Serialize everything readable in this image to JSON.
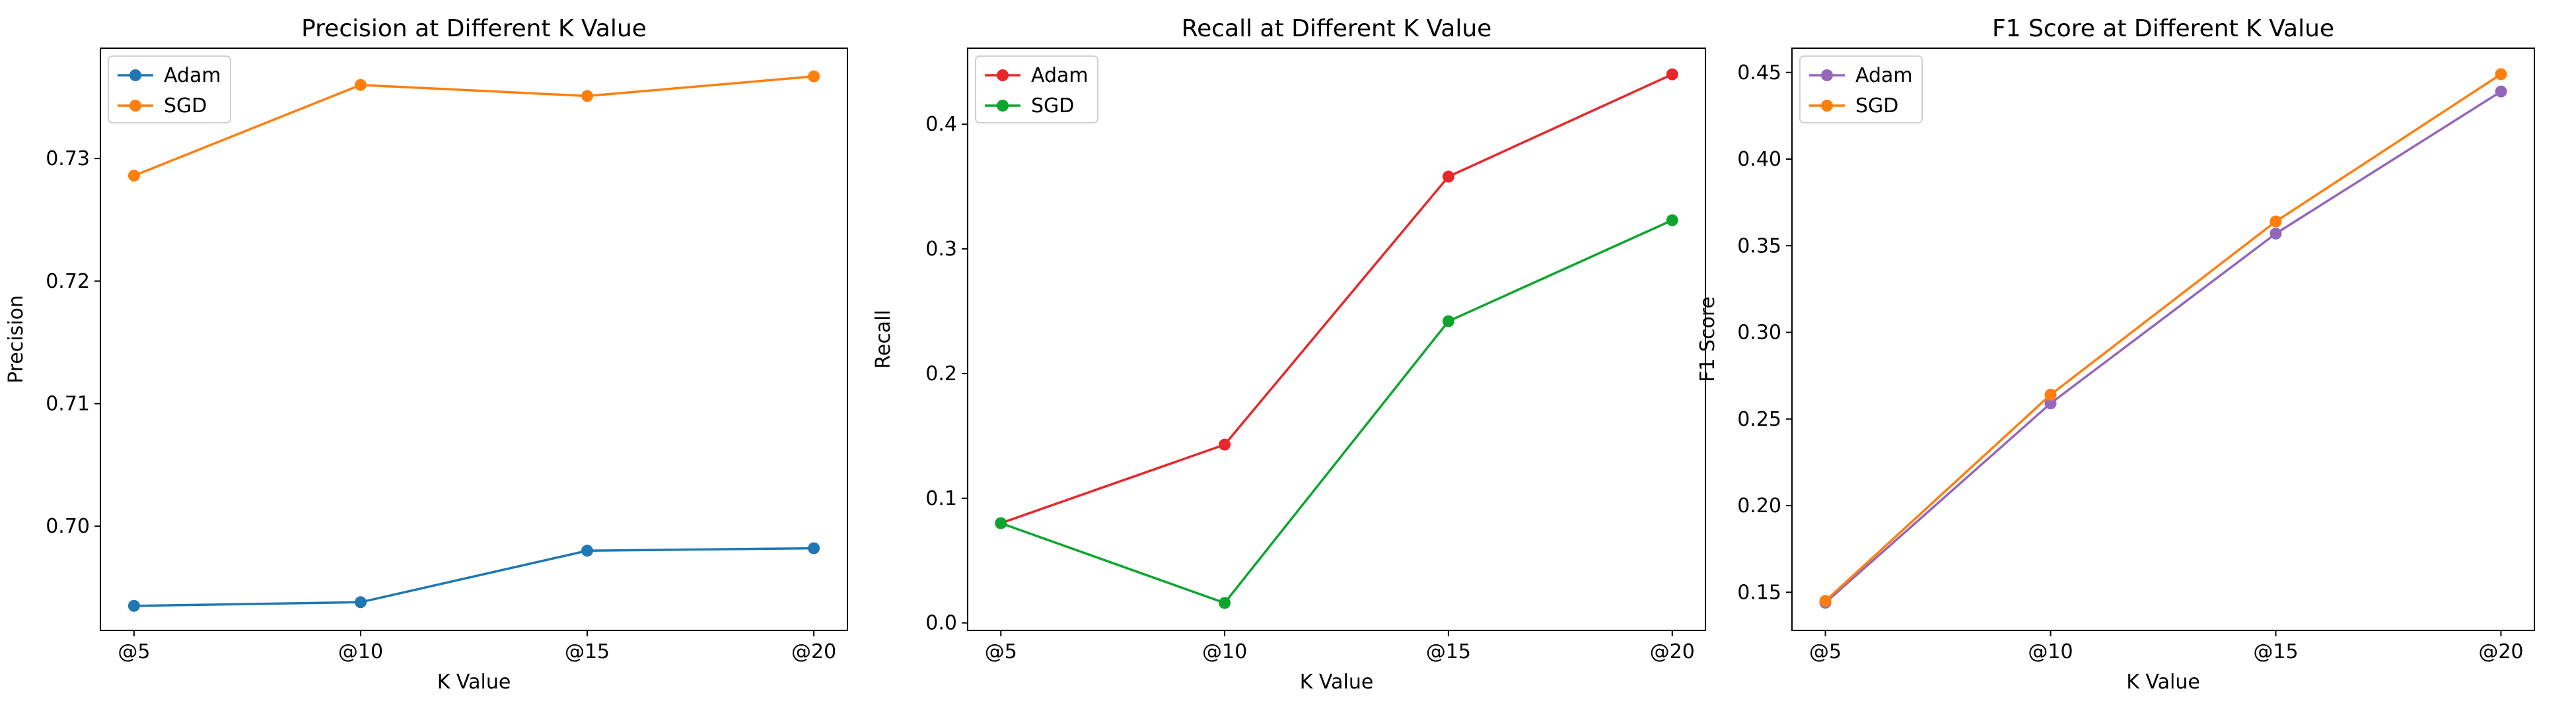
{
  "chart_data": [
    {
      "type": "line",
      "title": "Precision at Different K Value",
      "xlabel": "K Value",
      "ylabel": "Precision",
      "categories": [
        "@5",
        "@10",
        "@15",
        "@20"
      ],
      "ylim": [
        0.6915,
        0.739
      ],
      "yticks": [
        0.7,
        0.71,
        0.72,
        0.73
      ],
      "ytick_labels": [
        "0.70",
        "0.71",
        "0.72",
        "0.73"
      ],
      "grid": false,
      "legend": "top-left",
      "series": [
        {
          "name": "Adam",
          "color": "#1f77b4",
          "values": [
            0.6935,
            0.6938,
            0.698,
            0.6982
          ]
        },
        {
          "name": "SGD",
          "color": "#ff7f0e",
          "values": [
            0.7286,
            0.736,
            0.7351,
            0.7367
          ]
        }
      ]
    },
    {
      "type": "line",
      "title": "Recall at Different K Value",
      "xlabel": "K Value",
      "ylabel": "Recall",
      "categories": [
        "@5",
        "@10",
        "@15",
        "@20"
      ],
      "ylim": [
        -0.006,
        0.461
      ],
      "yticks": [
        0.0,
        0.1,
        0.2,
        0.3,
        0.4
      ],
      "ytick_labels": [
        "0.0",
        "0.1",
        "0.2",
        "0.3",
        "0.4"
      ],
      "grid": false,
      "legend": "top-left",
      "series": [
        {
          "name": "Adam",
          "color": "#e8272b",
          "values": [
            0.08,
            0.143,
            0.358,
            0.44
          ]
        },
        {
          "name": "SGD",
          "color": "#0ea52f",
          "values": [
            0.08,
            0.016,
            0.242,
            0.323
          ]
        }
      ]
    },
    {
      "type": "line",
      "title": "F1 Score at Different K Value",
      "xlabel": "K Value",
      "ylabel": "F1 Score",
      "categories": [
        "@5",
        "@10",
        "@15",
        "@20"
      ],
      "ylim": [
        0.128,
        0.464
      ],
      "yticks": [
        0.15,
        0.2,
        0.25,
        0.3,
        0.35,
        0.4,
        0.45
      ],
      "ytick_labels": [
        "0.15",
        "0.20",
        "0.25",
        "0.30",
        "0.35",
        "0.40",
        "0.45"
      ],
      "grid": false,
      "legend": "top-left",
      "series": [
        {
          "name": "Adam",
          "color": "#9467bd",
          "values": [
            0.144,
            0.259,
            0.357,
            0.439
          ]
        },
        {
          "name": "SGD",
          "color": "#ff7f0e",
          "values": [
            0.145,
            0.264,
            0.364,
            0.449
          ]
        }
      ]
    }
  ]
}
